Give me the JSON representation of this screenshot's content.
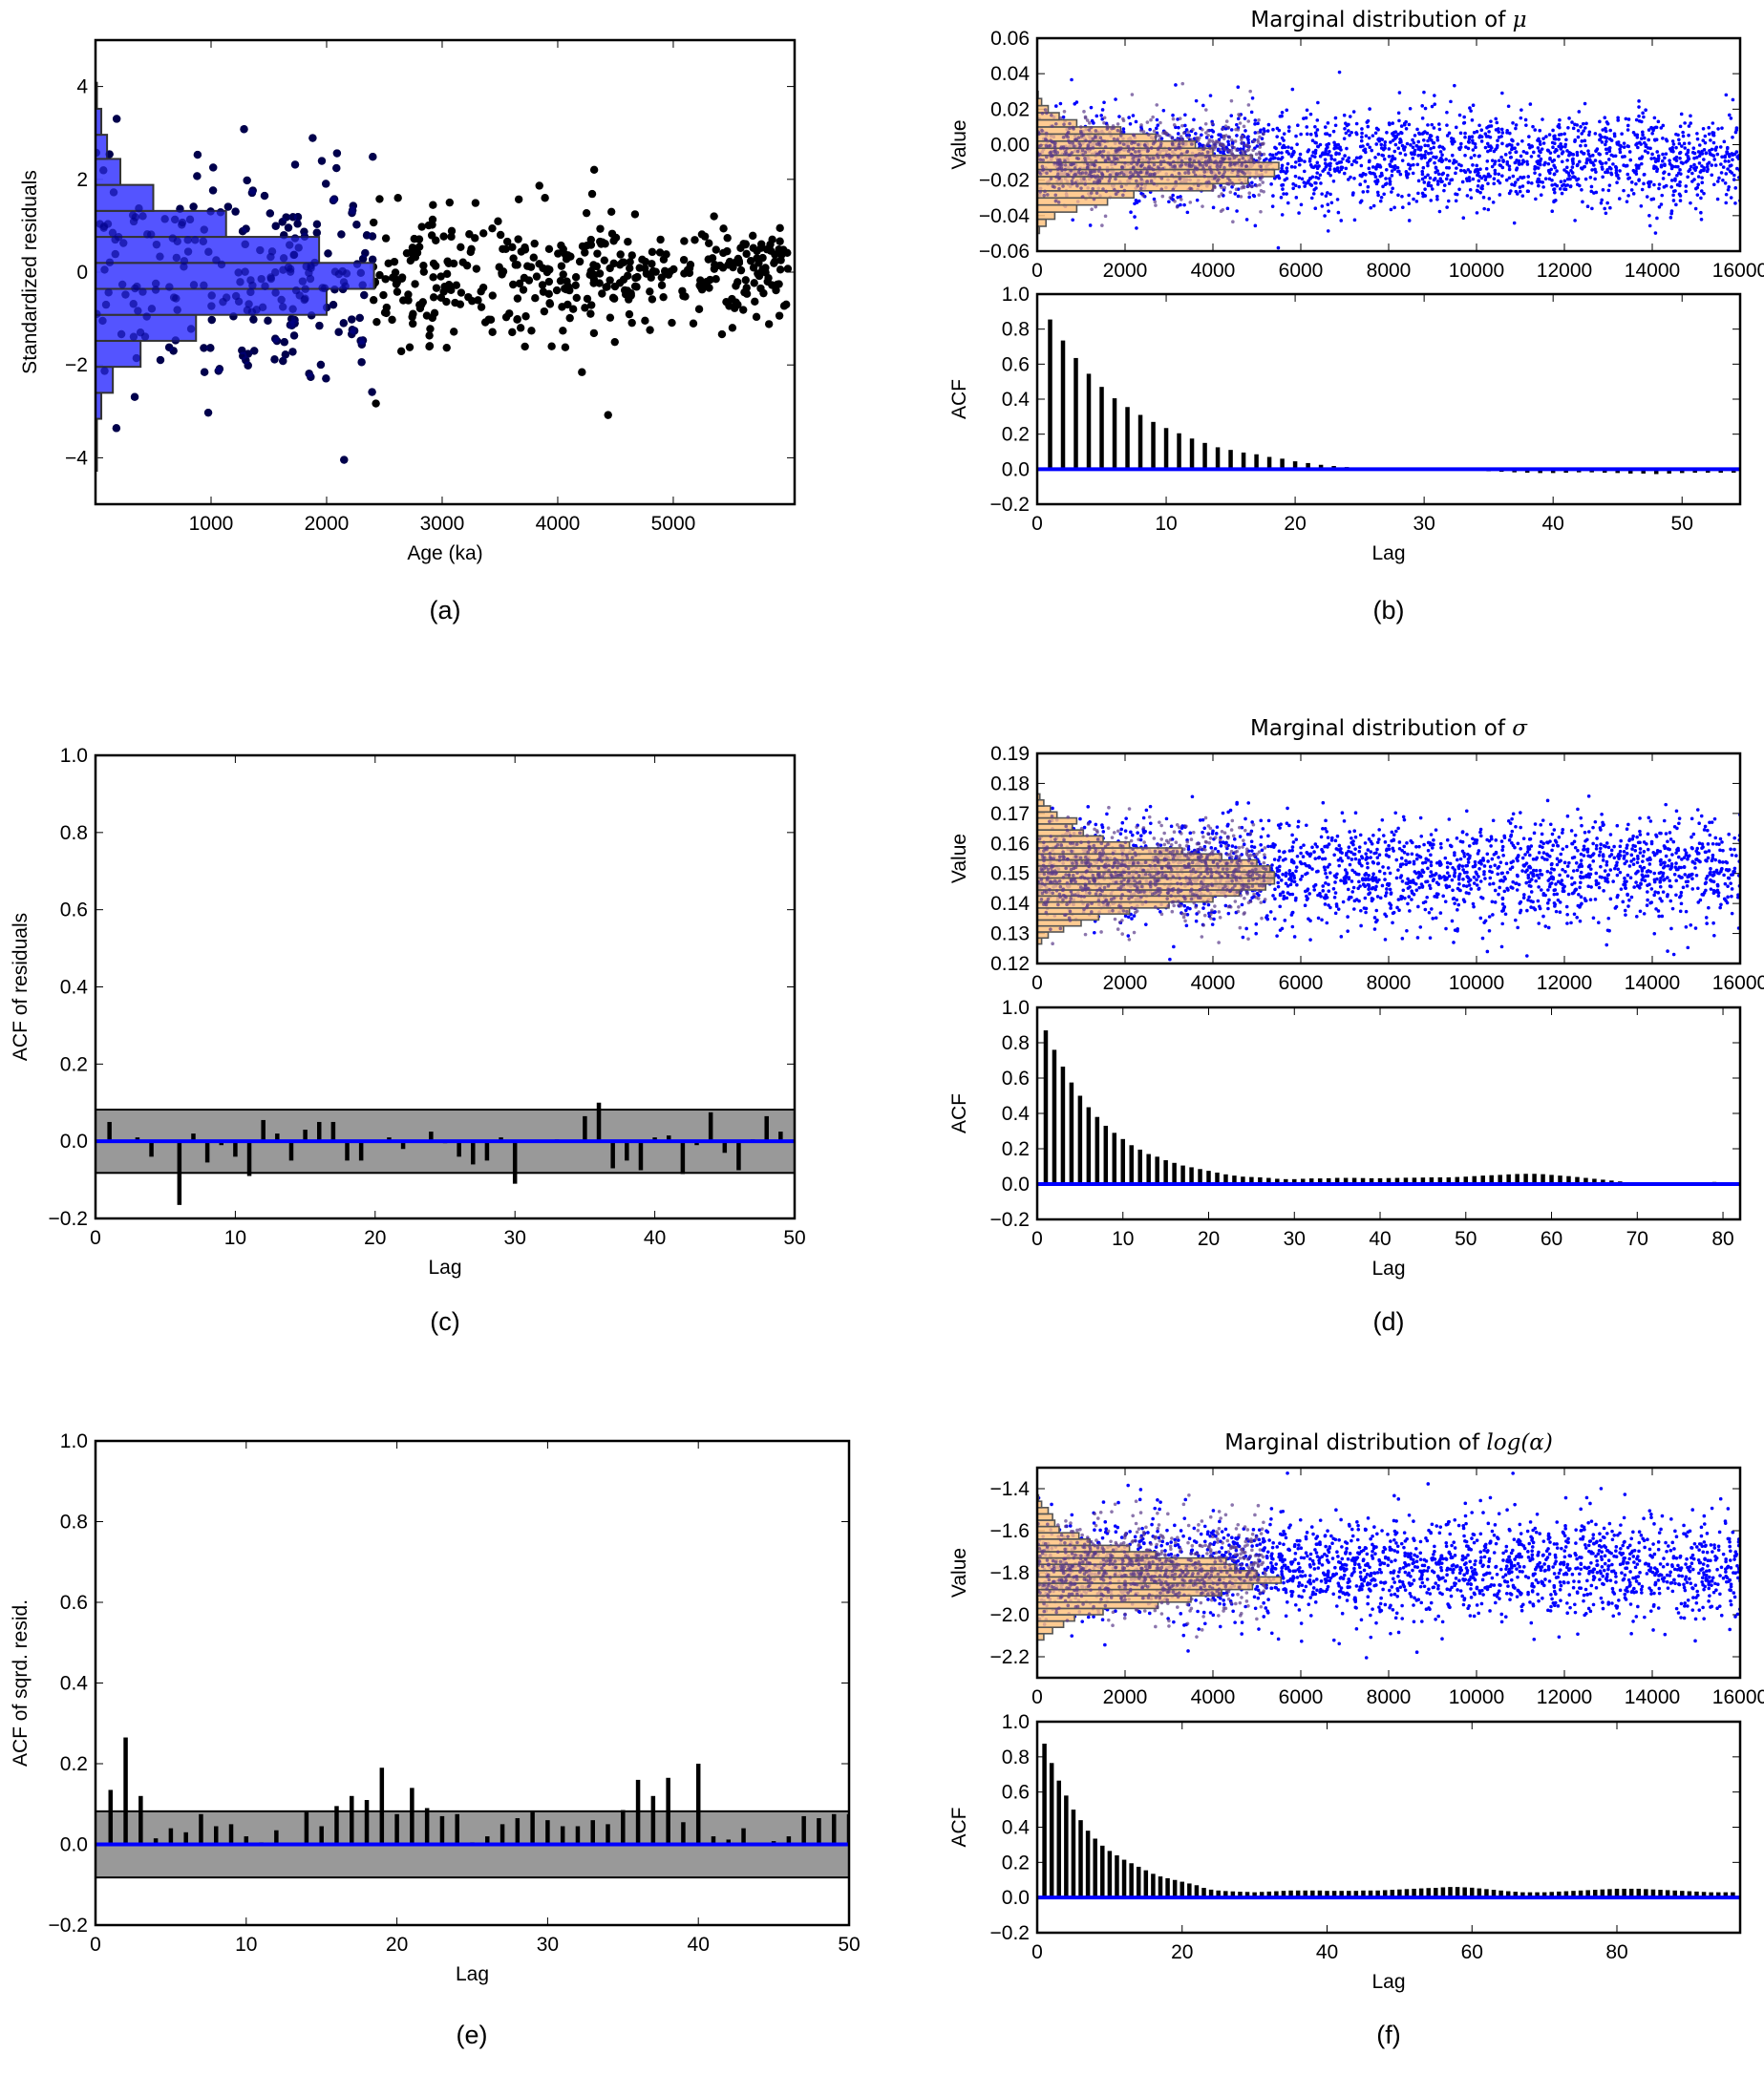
{
  "colors": {
    "residual_hist": "#4b4bff",
    "residual_points": "#000000",
    "trace_points": "#0000ff",
    "posterior_hist": "#ffc27f",
    "acf_bars": "#000000",
    "zero_line": "#0000ff",
    "confidence_band": "#999999"
  },
  "chart_data": [
    {
      "id": "a",
      "panel_label": "(a)",
      "type": "scatter",
      "title": "",
      "xlabel": "Age (ka)",
      "ylabel": "Standardized residuals",
      "xlim": [
        0,
        6050
      ],
      "ylim": [
        -5,
        5
      ],
      "xticks": [
        1000,
        2000,
        3000,
        4000,
        5000
      ],
      "xtick_labels": [
        "1000",
        "2000",
        "3000",
        "4000",
        "5000"
      ],
      "yticks": [
        -4,
        -2,
        0,
        2,
        4
      ],
      "ytick_labels": [
        "−4",
        "−2",
        "0",
        "2",
        "4"
      ],
      "n_points": 650,
      "histogram": {
        "orientation": "horizontal",
        "bin_edges": [
          -4.28,
          -3.72,
          -3.16,
          -2.6,
          -2.04,
          -1.48,
          -0.92,
          -0.36,
          0.2,
          0.76,
          1.32,
          1.88,
          2.44,
          2.96,
          3.52,
          4.08
        ],
        "counts_scaled": [
          10,
          10,
          50,
          150,
          390,
          870,
          2000,
          2410,
          1935,
          1130,
          500,
          215,
          100,
          50,
          10
        ]
      }
    },
    {
      "id": "b-trace",
      "panel_label": "(b)",
      "type": "scatter",
      "title": "Marginal distribution of ",
      "title_math": "μ",
      "xlabel": "",
      "ylabel": "Value",
      "xlim": [
        0,
        16000
      ],
      "ylim": [
        -0.06,
        0.06
      ],
      "xticks": [
        0,
        2000,
        4000,
        6000,
        8000,
        10000,
        12000,
        14000,
        16000
      ],
      "xtick_labels": [
        "0",
        "2000",
        "4000",
        "6000",
        "8000",
        "10000",
        "12000",
        "14000",
        "16000"
      ],
      "yticks": [
        -0.06,
        -0.04,
        -0.02,
        0.0,
        0.02,
        0.04,
        0.06
      ],
      "ytick_labels": [
        "−0.06",
        "−0.04",
        "−0.02",
        "0.00",
        "0.02",
        "0.04",
        "0.06"
      ],
      "trace_mean": -0.008,
      "trace_sd": 0.013,
      "n_points": 2200,
      "histogram": {
        "orientation": "horizontal",
        "bin_edges": [
          -0.05,
          -0.046,
          -0.042,
          -0.038,
          -0.034,
          -0.03,
          -0.026,
          -0.022,
          -0.018,
          -0.014,
          -0.01,
          -0.006,
          -0.002,
          0.002,
          0.006,
          0.01,
          0.014,
          0.018,
          0.022,
          0.026,
          0.03
        ],
        "counts": [
          50,
          200,
          400,
          900,
          1600,
          2200,
          4000,
          4800,
          5400,
          5500,
          4900,
          4000,
          3600,
          2700,
          1900,
          900,
          500,
          250,
          100,
          20
        ]
      }
    },
    {
      "id": "b-acf",
      "panel_label": "(b)",
      "type": "bar",
      "xlabel": "Lag",
      "ylabel": "ACF",
      "xlim": [
        0,
        54.5
      ],
      "ylim": [
        -0.2,
        1.0
      ],
      "xticks": [
        0,
        10,
        20,
        30,
        40,
        50
      ],
      "xtick_labels": [
        "0",
        "10",
        "20",
        "30",
        "40",
        "50"
      ],
      "yticks": [
        -0.2,
        0.0,
        0.2,
        0.4,
        0.6,
        0.8,
        1.0
      ],
      "ytick_labels": [
        "−0.2",
        "0.0",
        "0.2",
        "0.4",
        "0.6",
        "0.8",
        "1.0"
      ],
      "lags": [
        1,
        2,
        3,
        4,
        5,
        6,
        7,
        8,
        9,
        10,
        11,
        12,
        13,
        14,
        15,
        16,
        17,
        18,
        19,
        20,
        21,
        22,
        23,
        24,
        25,
        26,
        27,
        28,
        29,
        30,
        31,
        32,
        33,
        34,
        35,
        36,
        37,
        38,
        39,
        40,
        41,
        42,
        43,
        44,
        45,
        46,
        47,
        48,
        49,
        50,
        51,
        52,
        53,
        54
      ],
      "values": [
        0.855,
        0.735,
        0.635,
        0.545,
        0.47,
        0.405,
        0.355,
        0.31,
        0.27,
        0.235,
        0.205,
        0.175,
        0.15,
        0.125,
        0.11,
        0.095,
        0.085,
        0.07,
        0.06,
        0.045,
        0.035,
        0.025,
        0.018,
        0.012,
        0.005,
        0.002,
        0,
        0,
        0,
        0,
        0,
        0,
        -0.005,
        -0.008,
        -0.012,
        -0.015,
        -0.018,
        -0.02,
        -0.022,
        -0.022,
        -0.02,
        -0.018,
        -0.018,
        -0.02,
        -0.022,
        -0.025,
        -0.025,
        -0.028,
        -0.025,
        -0.022,
        -0.02,
        -0.02,
        -0.02,
        -0.02
      ]
    },
    {
      "id": "c",
      "panel_label": "(c)",
      "type": "bar",
      "xlabel": "Lag",
      "ylabel": "ACF of residuals",
      "xlim": [
        0,
        50
      ],
      "ylim": [
        -0.2,
        1.0
      ],
      "confidence_band": [
        -0.082,
        0.082
      ],
      "xticks": [
        0,
        10,
        20,
        30,
        40,
        50
      ],
      "xtick_labels": [
        "0",
        "10",
        "20",
        "30",
        "40",
        "50"
      ],
      "yticks": [
        -0.2,
        0.0,
        0.2,
        0.4,
        0.6,
        0.8,
        1.0
      ],
      "ytick_labels": [
        "−0.2",
        "0.0",
        "0.2",
        "0.4",
        "0.6",
        "0.8",
        "1.0"
      ],
      "lags": [
        1,
        2,
        3,
        4,
        5,
        6,
        7,
        8,
        9,
        10,
        11,
        12,
        13,
        14,
        15,
        16,
        17,
        18,
        19,
        20,
        21,
        22,
        23,
        24,
        25,
        26,
        27,
        28,
        29,
        30,
        31,
        32,
        33,
        34,
        35,
        36,
        37,
        38,
        39,
        40,
        41,
        42,
        43,
        44,
        45,
        46,
        47,
        48,
        49,
        50
      ],
      "values": [
        0.05,
        0,
        0.01,
        -0.04,
        0,
        -0.165,
        0.02,
        -0.055,
        -0.01,
        -0.04,
        -0.09,
        0.055,
        0.02,
        -0.05,
        0.03,
        0.05,
        0.05,
        -0.05,
        -0.05,
        0,
        0.01,
        -0.02,
        0,
        0.025,
        -0.005,
        -0.04,
        -0.06,
        -0.05,
        0.01,
        -0.11,
        0,
        0,
        0.005,
        0,
        0.065,
        0.1,
        -0.07,
        -0.05,
        -0.075,
        0.01,
        0.015,
        -0.085,
        -0.01,
        0.075,
        -0.03,
        -0.075,
        0.005,
        0.065,
        0.025,
        0
      ]
    },
    {
      "id": "d-trace",
      "panel_label": "(d)",
      "type": "scatter",
      "title": "Marginal distribution of ",
      "title_math": "σ",
      "xlabel": "",
      "ylabel": "Value",
      "xlim": [
        0,
        16000
      ],
      "ylim": [
        0.12,
        0.19
      ],
      "xticks": [
        0,
        2000,
        4000,
        6000,
        8000,
        10000,
        12000,
        14000,
        16000
      ],
      "xtick_labels": [
        "0",
        "2000",
        "4000",
        "6000",
        "8000",
        "10000",
        "12000",
        "14000",
        "16000"
      ],
      "yticks": [
        0.12,
        0.13,
        0.14,
        0.15,
        0.16,
        0.17,
        0.18,
        0.19
      ],
      "ytick_labels": [
        "0.12",
        "0.13",
        "0.14",
        "0.15",
        "0.16",
        "0.17",
        "0.18",
        "0.19"
      ],
      "trace_mean": 0.1505,
      "trace_sd": 0.0085,
      "n_points": 2200,
      "histogram": {
        "orientation": "horizontal",
        "bin_edges": [
          0.1265,
          0.1285,
          0.1305,
          0.1325,
          0.1345,
          0.1365,
          0.1385,
          0.1405,
          0.1425,
          0.1445,
          0.1465,
          0.1485,
          0.1505,
          0.1525,
          0.1545,
          0.1565,
          0.1585,
          0.1605,
          0.1625,
          0.1645,
          0.1665,
          0.1685,
          0.1705,
          0.1725,
          0.1745,
          0.1765
        ],
        "counts": [
          100,
          250,
          600,
          1000,
          1400,
          2100,
          3000,
          4000,
          4600,
          5200,
          5400,
          5400,
          5300,
          5000,
          4200,
          3300,
          2100,
          1500,
          1050,
          800,
          900,
          450,
          300,
          150,
          60
        ]
      }
    },
    {
      "id": "d-acf",
      "panel_label": "(d)",
      "type": "bar",
      "xlabel": "Lag",
      "ylabel": "ACF",
      "xlim": [
        0,
        82
      ],
      "ylim": [
        -0.2,
        1.0
      ],
      "xticks": [
        0,
        10,
        20,
        30,
        40,
        50,
        60,
        70,
        80
      ],
      "xtick_labels": [
        "0",
        "10",
        "20",
        "30",
        "40",
        "50",
        "60",
        "70",
        "80"
      ],
      "yticks": [
        -0.2,
        0.0,
        0.2,
        0.4,
        0.6,
        0.8,
        1.0
      ],
      "ytick_labels": [
        "−0.2",
        "0.0",
        "0.2",
        "0.4",
        "0.6",
        "0.8",
        "1.0"
      ],
      "lags": [
        1,
        2,
        3,
        4,
        5,
        6,
        7,
        8,
        9,
        10,
        11,
        12,
        13,
        14,
        15,
        16,
        17,
        18,
        19,
        20,
        21,
        22,
        23,
        24,
        25,
        26,
        27,
        28,
        29,
        30,
        31,
        32,
        33,
        34,
        35,
        36,
        37,
        38,
        39,
        40,
        41,
        42,
        43,
        44,
        45,
        46,
        47,
        48,
        49,
        50,
        51,
        52,
        53,
        54,
        55,
        56,
        57,
        58,
        59,
        60,
        61,
        62,
        63,
        64,
        65,
        66,
        67,
        68,
        69,
        70,
        71,
        72,
        73,
        74,
        75,
        76,
        77,
        78,
        79,
        80,
        81
      ],
      "values": [
        0.87,
        0.76,
        0.665,
        0.575,
        0.5,
        0.435,
        0.38,
        0.33,
        0.29,
        0.255,
        0.22,
        0.195,
        0.17,
        0.155,
        0.135,
        0.12,
        0.105,
        0.095,
        0.085,
        0.075,
        0.065,
        0.055,
        0.048,
        0.042,
        0.04,
        0.038,
        0.035,
        0.03,
        0.028,
        0.028,
        0.03,
        0.032,
        0.032,
        0.033,
        0.035,
        0.035,
        0.035,
        0.034,
        0.033,
        0.033,
        0.034,
        0.035,
        0.036,
        0.036,
        0.037,
        0.038,
        0.038,
        0.038,
        0.04,
        0.042,
        0.045,
        0.048,
        0.05,
        0.052,
        0.055,
        0.057,
        0.058,
        0.058,
        0.056,
        0.052,
        0.048,
        0.045,
        0.04,
        0.035,
        0.03,
        0.025,
        0.02,
        0.015,
        0.01,
        0.008,
        0.006,
        0.004,
        0.002,
        0.002,
        0.003,
        0.005,
        0.008,
        0.01,
        0.012,
        0.01,
        0.008
      ]
    },
    {
      "id": "e",
      "panel_label": "(e)",
      "type": "bar",
      "xlabel": "Lag",
      "ylabel": "ACF of sqrd. resid.",
      "xlim": [
        0,
        50
      ],
      "ylim": [
        -0.2,
        1.0
      ],
      "confidence_band": [
        -0.082,
        0.082
      ],
      "xticks": [
        0,
        10,
        20,
        30,
        40,
        50
      ],
      "xtick_labels": [
        "0",
        "10",
        "20",
        "30",
        "40",
        "50"
      ],
      "yticks": [
        -0.2,
        0.0,
        0.2,
        0.4,
        0.6,
        0.8,
        1.0
      ],
      "ytick_labels": [
        "−0.2",
        "0.0",
        "0.2",
        "0.4",
        "0.6",
        "0.8",
        "1.0"
      ],
      "lags": [
        1,
        2,
        3,
        4,
        5,
        6,
        7,
        8,
        9,
        10,
        11,
        12,
        13,
        14,
        15,
        16,
        17,
        18,
        19,
        20,
        21,
        22,
        23,
        24,
        25,
        26,
        27,
        28,
        29,
        30,
        31,
        32,
        33,
        34,
        35,
        36,
        37,
        38,
        39,
        40,
        41,
        42,
        43,
        44,
        45,
        46,
        47,
        48,
        49,
        50
      ],
      "values": [
        0.135,
        0.265,
        0.12,
        0.015,
        0.04,
        0.03,
        0.075,
        0.045,
        0.05,
        0.02,
        0.005,
        0.035,
        0.002,
        0.08,
        0.045,
        0.095,
        0.12,
        0.11,
        0.19,
        0.075,
        0.14,
        0.09,
        0.07,
        0.075,
        0.005,
        0.02,
        0.05,
        0.065,
        0.08,
        0.06,
        0.045,
        0.045,
        0.06,
        0.05,
        0.085,
        0.16,
        0.12,
        0.165,
        0.055,
        0.2,
        0.02,
        0.012,
        0.04,
        0,
        0.008,
        0.02,
        0.07,
        0.065,
        0.075,
        0.075
      ]
    },
    {
      "id": "f-trace",
      "panel_label": "(f)",
      "type": "scatter",
      "title": "Marginal distribution of ",
      "title_math": "log(α)",
      "xlabel": "",
      "ylabel": "Value",
      "xlim": [
        0,
        16000
      ],
      "ylim": [
        -2.3,
        -1.3
      ],
      "xticks": [
        0,
        2000,
        4000,
        6000,
        8000,
        10000,
        12000,
        14000,
        16000
      ],
      "xtick_labels": [
        "0",
        "2000",
        "4000",
        "6000",
        "8000",
        "10000",
        "12000",
        "14000",
        "16000"
      ],
      "yticks": [
        -2.2,
        -2.0,
        -1.8,
        -1.6,
        -1.4
      ],
      "ytick_labels": [
        "−2.2",
        "−2.0",
        "−1.8",
        "−1.6",
        "−1.4"
      ],
      "trace_mean": -1.78,
      "trace_sd": 0.12,
      "n_points": 2200,
      "histogram": {
        "orientation": "horizontal",
        "bin_edges": [
          -2.12,
          -2.09,
          -2.06,
          -2.03,
          -2.0,
          -1.97,
          -1.94,
          -1.91,
          -1.88,
          -1.85,
          -1.82,
          -1.79,
          -1.76,
          -1.73,
          -1.7,
          -1.67,
          -1.64,
          -1.61,
          -1.58,
          -1.55,
          -1.52,
          -1.49,
          -1.46,
          -1.43
        ],
        "counts": [
          150,
          350,
          600,
          850,
          1500,
          2750,
          3500,
          4200,
          4900,
          5550,
          5000,
          4500,
          4300,
          2700,
          2100,
          1200,
          950,
          500,
          400,
          350,
          250,
          100,
          30
        ]
      }
    },
    {
      "id": "f-acf",
      "panel_label": "(f)",
      "type": "bar",
      "xlabel": "Lag",
      "ylabel": "ACF",
      "xlim": [
        0,
        97
      ],
      "ylim": [
        -0.2,
        1.0
      ],
      "xticks": [
        0,
        20,
        40,
        60,
        80
      ],
      "xtick_labels": [
        "0",
        "20",
        "40",
        "60",
        "80"
      ],
      "yticks": [
        -0.2,
        0.0,
        0.2,
        0.4,
        0.6,
        0.8,
        1.0
      ],
      "ytick_labels": [
        "−0.2",
        "0.0",
        "0.2",
        "0.4",
        "0.6",
        "0.8",
        "1.0"
      ],
      "lags": [
        1,
        2,
        3,
        4,
        5,
        6,
        7,
        8,
        9,
        10,
        11,
        12,
        13,
        14,
        15,
        16,
        17,
        18,
        19,
        20,
        21,
        22,
        23,
        24,
        25,
        26,
        27,
        28,
        29,
        30,
        31,
        32,
        33,
        34,
        35,
        36,
        37,
        38,
        39,
        40,
        41,
        42,
        43,
        44,
        45,
        46,
        47,
        48,
        49,
        50,
        51,
        52,
        53,
        54,
        55,
        56,
        57,
        58,
        59,
        60,
        61,
        62,
        63,
        64,
        65,
        66,
        67,
        68,
        69,
        70,
        71,
        72,
        73,
        74,
        75,
        76,
        77,
        78,
        79,
        80,
        81,
        82,
        83,
        84,
        85,
        86,
        87,
        88,
        89,
        90,
        91,
        92,
        93,
        94,
        95,
        96
      ],
      "values": [
        0.875,
        0.765,
        0.665,
        0.58,
        0.5,
        0.44,
        0.38,
        0.335,
        0.295,
        0.265,
        0.24,
        0.215,
        0.195,
        0.175,
        0.155,
        0.135,
        0.12,
        0.11,
        0.1,
        0.09,
        0.08,
        0.07,
        0.055,
        0.045,
        0.04,
        0.037,
        0.035,
        0.033,
        0.032,
        0.03,
        0.032,
        0.034,
        0.036,
        0.038,
        0.04,
        0.04,
        0.04,
        0.04,
        0.04,
        0.038,
        0.038,
        0.038,
        0.038,
        0.038,
        0.04,
        0.04,
        0.04,
        0.042,
        0.044,
        0.046,
        0.048,
        0.05,
        0.052,
        0.054,
        0.055,
        0.058,
        0.06,
        0.06,
        0.058,
        0.056,
        0.052,
        0.048,
        0.044,
        0.04,
        0.036,
        0.033,
        0.03,
        0.03,
        0.03,
        0.03,
        0.032,
        0.034,
        0.036,
        0.038,
        0.04,
        0.042,
        0.044,
        0.046,
        0.048,
        0.05,
        0.05,
        0.05,
        0.05,
        0.048,
        0.046,
        0.044,
        0.042,
        0.04,
        0.038,
        0.036,
        0.034,
        0.032,
        0.03,
        0.03,
        0.03,
        0.03
      ]
    }
  ]
}
